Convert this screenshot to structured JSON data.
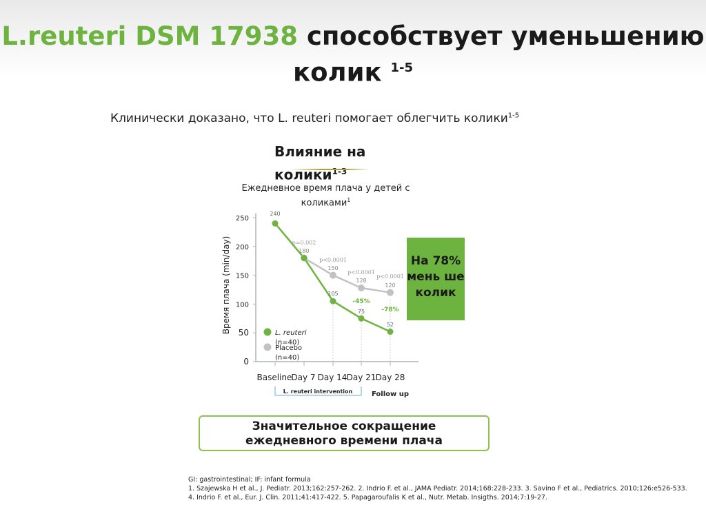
{
  "header": {
    "title_green": "L.reuteri DSM 17938",
    "title_black": "способствует уменьшению",
    "title_line2": "колик",
    "title_sup": "1-5"
  },
  "subtitle": {
    "text": "Клинически доказано, что L. reuteri помогает облегчить колики",
    "sup": "1-5"
  },
  "panel": {
    "title": "Влияние на колики",
    "sup": "1-3"
  },
  "chart_data": {
    "type": "line",
    "title": "Ежедневное время плача у детей с коликами",
    "title_sup": "1",
    "ylabel": "Время плача (min/day)",
    "xlabel": "",
    "ylim": [
      0,
      250
    ],
    "yticks": [
      "0",
      "50",
      "100",
      "150",
      "200",
      "250"
    ],
    "categories": [
      "Baseline",
      "Day 7",
      "Day 14",
      "Day 21",
      "Day 28"
    ],
    "series": [
      {
        "name": "L. reuteri",
        "n": "(n=40)",
        "color": "#6cb43f",
        "points": [
          {
            "x": "Baseline",
            "y": 240
          },
          {
            "x": "Day 7",
            "y": 180
          },
          {
            "x": "Day 14",
            "y": 105
          },
          {
            "x": "Day 21",
            "y": 75
          },
          {
            "x": "Day 28",
            "y": 52
          }
        ],
        "labels": [
          "240",
          "105",
          "75",
          "52"
        ]
      },
      {
        "name": "Placebo",
        "n": "(n=40)",
        "color": "#c2c2c2",
        "points": [
          {
            "x": "Day 7",
            "y": 180
          },
          {
            "x": "Day 14",
            "y": 150
          },
          {
            "x": "Day 21",
            "y": 128
          },
          {
            "x": "Day 28",
            "y": 120
          }
        ],
        "labels": [
          "180",
          "150",
          "128",
          "120"
        ]
      }
    ],
    "pvalues": [
      {
        "at": "Day 7",
        "text": "p=0.002"
      },
      {
        "at": "Day 14",
        "text": "p<0.0001"
      },
      {
        "at": "Day 21",
        "text": "p<0.0001"
      },
      {
        "at": "Day 28",
        "text": "p<0.0001"
      }
    ],
    "reductions": [
      {
        "at": "Day 21",
        "text": "-45%"
      },
      {
        "at": "Day 28",
        "text": "-78%"
      }
    ],
    "intervention_label": "L. reuteri intervention",
    "followup_label": "Follow up",
    "legend": "inside-lower-left"
  },
  "badge": {
    "text": "На 78% мень ше колик"
  },
  "callout": {
    "line1": "Значительное сокращение",
    "line2": "ежедневного времени плача"
  },
  "references": {
    "line1": "GI: gastrointestinal; IF: infant formula",
    "line2": "1. Szajewska H et al., J. Pediatr. 2013;162:257-262. 2. Indrio F. et al., JAMA Pediatr. 2014;168:228-233. 3. Savino F et al., Pediatrics. 2010;126:e526-533.",
    "line3": "4. Indrio F. et al., Eur. J. Clin. 2011;41:417-422. 5. Papagaroufalis K et al., Nutr. Metab. Insigths. 2014;7:19-27."
  }
}
